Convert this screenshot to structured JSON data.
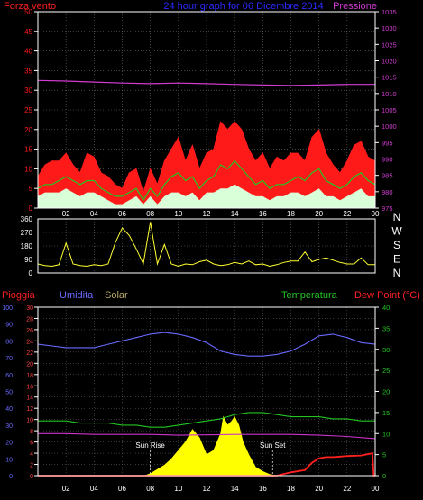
{
  "colors": {
    "background": "#000000",
    "frame": "#ffffff",
    "grid": "#6f6f6f",
    "wind_gust": "#ff1a1a",
    "wind_avg": "#1ec81e",
    "wind_min": "#d8ffd8",
    "pressure": "#d23cd2",
    "direction": "#ffff33",
    "rain": "#ff2020",
    "rain_axis": "#ff4040",
    "humidity": "#6a6aff",
    "humidity_axis": "#6a6aff",
    "solar": "#ffff00",
    "temperature": "#23c323",
    "dewpoint": "#cc33cc",
    "title": "#2a2aff",
    "sun_marker": "#ffffff"
  },
  "chart_data": [
    {
      "type": "area",
      "id": "wind",
      "title": "24 hour graph for 06 Dicembre 2014",
      "left_label": "Forza vento",
      "right_label": "Pressione",
      "x_ticks": [
        "02",
        "04",
        "06",
        "08",
        "10",
        "12",
        "14",
        "16",
        "18",
        "20",
        "22",
        "00"
      ],
      "x_range": [
        0,
        24
      ],
      "y_left_ticks": [
        0,
        5,
        10,
        15,
        20,
        25,
        30,
        35,
        40,
        45,
        50
      ],
      "y_left_range": [
        0,
        50
      ],
      "y_right_ticks": [
        975,
        980,
        985,
        990,
        995,
        1000,
        1005,
        1010,
        1015,
        1020,
        1025,
        1030,
        1035
      ],
      "y_right_range": [
        975,
        1035
      ],
      "series": [
        {
          "key": "gust",
          "type": "area",
          "x": [
            0,
            0.5,
            1,
            1.5,
            2,
            2.5,
            3,
            3.5,
            4,
            4.5,
            5,
            5.5,
            6,
            6.5,
            7,
            7.5,
            8,
            8.5,
            9,
            9.5,
            10,
            10.5,
            11,
            11.5,
            12,
            12.5,
            13,
            13.5,
            14,
            14.5,
            15,
            15.5,
            16,
            16.5,
            17,
            17.5,
            18,
            18.5,
            19,
            19.5,
            20,
            20.5,
            21,
            21.5,
            22,
            22.5,
            23,
            23.5,
            24
          ],
          "values": [
            8,
            11,
            12,
            12,
            14,
            11,
            9,
            14,
            13,
            9,
            8,
            6,
            5,
            9,
            10,
            4,
            10,
            6,
            12,
            15,
            18,
            12,
            16,
            10,
            14,
            15,
            22,
            20,
            22,
            20,
            15,
            12,
            14,
            10,
            13,
            12,
            14,
            14,
            12,
            18,
            20,
            14,
            11,
            9,
            12,
            16,
            17,
            13,
            12
          ]
        },
        {
          "key": "avg",
          "type": "line",
          "x": [
            0,
            0.5,
            1,
            1.5,
            2,
            2.5,
            3,
            3.5,
            4,
            4.5,
            5,
            5.5,
            6,
            6.5,
            7,
            7.5,
            8,
            8.5,
            9,
            9.5,
            10,
            10.5,
            11,
            11.5,
            12,
            12.5,
            13,
            13.5,
            14,
            14.5,
            15,
            15.5,
            16,
            16.5,
            17,
            17.5,
            18,
            18.5,
            19,
            19.5,
            20,
            20.5,
            21,
            21.5,
            22,
            22.5,
            23,
            23.5,
            24
          ],
          "values": [
            5,
            6,
            6,
            7,
            8,
            7,
            6,
            7,
            7,
            5,
            4,
            3,
            3,
            4,
            5,
            2,
            5,
            3,
            6,
            8,
            9,
            7,
            8,
            5,
            7,
            8,
            11,
            10,
            12,
            10,
            8,
            6,
            7,
            5,
            6,
            6,
            7,
            8,
            7,
            9,
            10,
            7,
            6,
            5,
            6,
            8,
            9,
            7,
            6
          ]
        },
        {
          "key": "min",
          "type": "area",
          "x": [
            0,
            0.5,
            1,
            1.5,
            2,
            2.5,
            3,
            3.5,
            4,
            4.5,
            5,
            5.5,
            6,
            6.5,
            7,
            7.5,
            8,
            8.5,
            9,
            9.5,
            10,
            10.5,
            11,
            11.5,
            12,
            12.5,
            13,
            13.5,
            14,
            14.5,
            15,
            15.5,
            16,
            16.5,
            17,
            17.5,
            18,
            18.5,
            19,
            19.5,
            20,
            20.5,
            21,
            21.5,
            22,
            22.5,
            23,
            23.5,
            24
          ],
          "values": [
            3,
            4,
            4,
            4,
            5,
            4,
            3,
            4,
            4,
            3,
            2,
            1,
            1,
            2,
            3,
            1,
            3,
            1,
            3,
            4,
            4,
            3,
            4,
            2,
            4,
            4,
            5,
            5,
            6,
            5,
            4,
            3,
            3,
            2,
            3,
            3,
            4,
            4,
            3,
            4,
            5,
            3,
            3,
            2,
            3,
            4,
            5,
            3,
            3
          ]
        },
        {
          "key": "pressure",
          "type": "line",
          "axis": "right",
          "x": [
            0,
            2,
            4,
            6,
            8,
            10,
            12,
            14,
            16,
            18,
            20,
            22,
            24
          ],
          "values": [
            1014,
            1013.8,
            1013.5,
            1013.2,
            1013,
            1013.2,
            1013,
            1012.8,
            1012.6,
            1012.5,
            1012.6,
            1012.8,
            1012.8
          ]
        }
      ]
    },
    {
      "type": "line",
      "id": "direction",
      "x_range": [
        0,
        24
      ],
      "y_ticks": [
        0,
        90,
        180,
        270,
        360
      ],
      "y_range": [
        0,
        360
      ],
      "right_labels": [
        "N",
        "W",
        "S",
        "E",
        "N"
      ],
      "series": [
        {
          "key": "direction",
          "x": [
            0,
            0.5,
            1,
            1.5,
            2,
            2.5,
            3,
            3.5,
            4,
            4.5,
            5,
            5.5,
            6,
            6.5,
            7,
            7.5,
            8,
            8.5,
            9,
            9.5,
            10,
            10.5,
            11,
            11.5,
            12,
            12.5,
            13,
            13.5,
            14,
            14.5,
            15,
            15.5,
            16,
            16.5,
            17,
            17.5,
            18,
            18.5,
            19,
            19.5,
            20,
            20.5,
            21,
            21.5,
            22,
            22.5,
            23,
            23.5,
            24
          ],
          "values": [
            60,
            50,
            45,
            55,
            200,
            60,
            50,
            45,
            55,
            50,
            60,
            200,
            300,
            250,
            160,
            60,
            340,
            60,
            190,
            60,
            45,
            60,
            55,
            75,
            85,
            60,
            50,
            55,
            70,
            60,
            80,
            55,
            60,
            45,
            55,
            70,
            80,
            80,
            140,
            75,
            90,
            100,
            85,
            70,
            60,
            60,
            100,
            55,
            55
          ]
        }
      ]
    },
    {
      "type": "line",
      "id": "weather",
      "left_label_1": "Pioggia",
      "left_label_2": "Umidita",
      "left_label_3": "Solar",
      "right_label_1": "Temperatura",
      "right_label_2": "Dew Point (°C)",
      "x_ticks": [
        "02",
        "04",
        "06",
        "08",
        "10",
        "12",
        "14",
        "16",
        "18",
        "20",
        "22",
        "00"
      ],
      "x_range": [
        0,
        24
      ],
      "rain_ticks": [
        0,
        2,
        4,
        6,
        8,
        10,
        12,
        14,
        16,
        18,
        20,
        22,
        24,
        26,
        28,
        30
      ],
      "rain_range": [
        0,
        30
      ],
      "humidity_ticks": [
        0,
        10,
        20,
        30,
        40,
        50,
        60,
        70,
        80,
        90,
        100
      ],
      "humidity_range": [
        0,
        100
      ],
      "temp_ticks": [
        0,
        5,
        10,
        15,
        20,
        25,
        30,
        35,
        40
      ],
      "temp_range": [
        0,
        40
      ],
      "sun_rise_label": "Sun Rise",
      "sun_set_label": "Sun Set",
      "sun_rise_x": 8.0,
      "sun_set_x": 16.7,
      "series": [
        {
          "key": "solar",
          "type": "area",
          "axis": "temp",
          "x": [
            7.6,
            8,
            8.5,
            9,
            9.5,
            10,
            10.5,
            11,
            11.5,
            12,
            12.5,
            13,
            13.2,
            13.5,
            13.8,
            14,
            14.3,
            14.6,
            15,
            15.5,
            16,
            16.5,
            17
          ],
          "values": [
            0,
            0.5,
            1.5,
            2.5,
            4,
            6,
            8,
            11,
            9,
            5,
            6,
            10,
            14,
            12,
            13,
            14,
            12,
            8,
            5,
            2,
            1,
            0.3,
            0
          ]
        },
        {
          "key": "humidity",
          "type": "line",
          "axis": "humidity",
          "x": [
            0,
            1,
            2,
            3,
            4,
            5,
            6,
            7,
            8,
            9,
            10,
            11,
            12,
            13,
            14,
            15,
            16,
            17,
            18,
            19,
            20,
            21,
            22,
            23,
            24
          ],
          "values": [
            78,
            77,
            76,
            76,
            76,
            78,
            80,
            82,
            84,
            85,
            84,
            82,
            79,
            74,
            72,
            71,
            71,
            72,
            74,
            78,
            83,
            84,
            82,
            79,
            78
          ]
        },
        {
          "key": "temperature",
          "type": "line",
          "axis": "temp",
          "x": [
            0,
            1,
            2,
            3,
            4,
            5,
            6,
            7,
            8,
            9,
            10,
            11,
            12,
            13,
            14,
            15,
            16,
            17,
            18,
            19,
            20,
            21,
            22,
            23,
            24
          ],
          "values": [
            13,
            13,
            13,
            12.5,
            12.5,
            12.5,
            12,
            12,
            11.5,
            11.5,
            12,
            12.5,
            13,
            13.5,
            14.5,
            15,
            15,
            14.5,
            14,
            14,
            14,
            13.5,
            13.5,
            13,
            13
          ]
        },
        {
          "key": "dewpoint",
          "type": "line",
          "axis": "temp",
          "x": [
            0,
            2,
            4,
            6,
            8,
            10,
            12,
            14,
            16,
            18,
            20,
            22,
            24
          ],
          "values": [
            10,
            10,
            9.8,
            9.8,
            9.8,
            9.6,
            9.7,
            9.8,
            9.8,
            9.8,
            9.6,
            9.3,
            8.8
          ]
        },
        {
          "key": "rain",
          "type": "line",
          "axis": "rain",
          "x": [
            0,
            17,
            18,
            19,
            19.5,
            20,
            20.5,
            21,
            22,
            23,
            23.8,
            23.9,
            24
          ],
          "values": [
            0,
            0,
            0.6,
            1,
            2.3,
            3.1,
            3.3,
            3.3,
            3.5,
            3.6,
            4,
            0,
            0
          ]
        }
      ]
    }
  ]
}
